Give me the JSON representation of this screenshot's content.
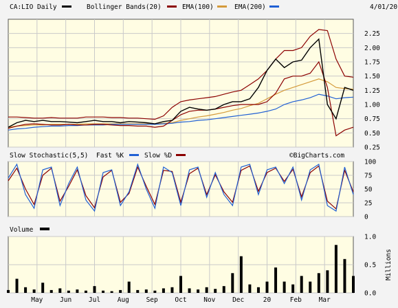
{
  "chart_data": {
    "type": "line",
    "symbol_label": "CA:LIO Daily",
    "date": "4/01/20",
    "price_panel": {
      "ylim": [
        0.25,
        2.5
      ],
      "y_ticks": [
        "2.25",
        "2.00",
        "1.75",
        "1.50",
        "1.25",
        "1.00",
        "0.75",
        "0.50",
        "0.25"
      ],
      "y_tick_values": [
        2.25,
        2.0,
        1.75,
        1.5,
        1.25,
        1.0,
        0.75,
        0.5,
        0.25
      ],
      "legend": [
        {
          "label": "CA:LIO Daily",
          "color": "#000000"
        },
        {
          "label": "Bollinger Bands(20)",
          "color": "#8b0000"
        },
        {
          "label": "EMA(100)",
          "color": "#d49a3a"
        },
        {
          "label": "EMA(200)",
          "color": "#1f5fd4"
        }
      ],
      "x": [
        0,
        0.3,
        0.6,
        0.9,
        1.2,
        1.5,
        1.8,
        2.1,
        2.4,
        2.7,
        3.0,
        3.3,
        3.6,
        3.9,
        4.2,
        4.5,
        4.8,
        5.1,
        5.4,
        5.7,
        6.0,
        6.3,
        6.6,
        6.9,
        7.2,
        7.5,
        7.8,
        8.1,
        8.4,
        8.7,
        9.0,
        9.3,
        9.6,
        9.9,
        10.2,
        10.5,
        10.8,
        11.1,
        11.4,
        11.7,
        12.0
      ],
      "series": [
        {
          "name": "CA:LIO Daily",
          "color": "#000000",
          "values": [
            0.6,
            0.68,
            0.72,
            0.7,
            0.72,
            0.7,
            0.7,
            0.69,
            0.68,
            0.7,
            0.72,
            0.7,
            0.7,
            0.68,
            0.7,
            0.69,
            0.68,
            0.66,
            0.7,
            0.72,
            0.88,
            0.95,
            0.92,
            0.9,
            0.92,
            1.0,
            1.05,
            1.05,
            1.1,
            1.3,
            1.6,
            1.8,
            1.65,
            1.75,
            1.78,
            2.0,
            2.15,
            1.0,
            0.75,
            1.3,
            1.25
          ]
        },
        {
          "name": "Bollinger Bands(20)",
          "color": "#8b0000",
          "values": [
            0.78,
            0.78,
            0.77,
            0.76,
            0.76,
            0.77,
            0.76,
            0.76,
            0.76,
            0.78,
            0.78,
            0.78,
            0.77,
            0.77,
            0.76,
            0.76,
            0.75,
            0.74,
            0.8,
            0.95,
            1.05,
            1.08,
            1.1,
            1.12,
            1.14,
            1.18,
            1.22,
            1.25,
            1.35,
            1.45,
            1.6,
            1.8,
            1.95,
            1.95,
            2.0,
            2.2,
            2.32,
            2.3,
            1.8,
            1.5,
            1.48
          ]
        },
        {
          "name": "Bollinger Bands(20) lower",
          "color": "#8b0000",
          "values": [
            0.58,
            0.62,
            0.65,
            0.66,
            0.65,
            0.64,
            0.64,
            0.65,
            0.64,
            0.64,
            0.65,
            0.65,
            0.64,
            0.63,
            0.63,
            0.62,
            0.62,
            0.6,
            0.62,
            0.72,
            0.82,
            0.88,
            0.9,
            0.9,
            0.92,
            0.95,
            0.98,
            1.0,
            1.0,
            1.0,
            1.05,
            1.2,
            1.45,
            1.5,
            1.5,
            1.55,
            1.75,
            1.3,
            0.45,
            0.55,
            0.6
          ]
        },
        {
          "name": "EMA(100)",
          "color": "#d49a3a",
          "values": [
            0.6,
            0.62,
            0.63,
            0.64,
            0.64,
            0.65,
            0.65,
            0.65,
            0.65,
            0.66,
            0.66,
            0.66,
            0.66,
            0.66,
            0.66,
            0.66,
            0.66,
            0.66,
            0.67,
            0.68,
            0.72,
            0.75,
            0.78,
            0.8,
            0.83,
            0.86,
            0.9,
            0.93,
            0.98,
            1.02,
            1.1,
            1.18,
            1.25,
            1.3,
            1.35,
            1.4,
            1.45,
            1.4,
            1.3,
            1.28,
            1.27
          ]
        },
        {
          "name": "EMA(200)",
          "color": "#1f5fd4",
          "values": [
            0.55,
            0.57,
            0.58,
            0.6,
            0.61,
            0.62,
            0.62,
            0.63,
            0.63,
            0.64,
            0.64,
            0.64,
            0.65,
            0.65,
            0.65,
            0.65,
            0.65,
            0.65,
            0.66,
            0.67,
            0.69,
            0.7,
            0.72,
            0.73,
            0.75,
            0.77,
            0.79,
            0.81,
            0.83,
            0.85,
            0.88,
            0.92,
            1.0,
            1.05,
            1.08,
            1.12,
            1.18,
            1.15,
            1.1,
            1.12,
            1.13
          ]
        }
      ]
    },
    "stochastic_panel": {
      "title": "Slow Stochastic(5,5)",
      "legend": [
        {
          "label": "Fast %K",
          "color": "#1f5fd4"
        },
        {
          "label": "Slow %D",
          "color": "#8b0000"
        }
      ],
      "ylim": [
        0,
        100
      ],
      "y_ticks": [
        "100",
        "75",
        "50",
        "25",
        "0"
      ],
      "y_tick_values": [
        100,
        75,
        50,
        25,
        0
      ],
      "x": [
        0,
        0.3,
        0.6,
        0.9,
        1.2,
        1.5,
        1.8,
        2.1,
        2.4,
        2.7,
        3.0,
        3.3,
        3.6,
        3.9,
        4.2,
        4.5,
        4.8,
        5.1,
        5.4,
        5.7,
        6.0,
        6.3,
        6.6,
        6.9,
        7.2,
        7.5,
        7.8,
        8.1,
        8.4,
        8.7,
        9.0,
        9.3,
        9.6,
        9.9,
        10.2,
        10.5,
        10.8,
        11.1,
        11.4,
        11.7,
        12.0
      ],
      "series": [
        {
          "name": "Fast %K",
          "color": "#1f5fd4",
          "values": [
            70,
            95,
            40,
            15,
            85,
            90,
            20,
            60,
            90,
            30,
            10,
            80,
            85,
            20,
            45,
            95,
            50,
            15,
            90,
            80,
            20,
            85,
            90,
            35,
            80,
            40,
            20,
            90,
            95,
            40,
            85,
            90,
            60,
            90,
            30,
            85,
            95,
            20,
            10,
            90,
            40
          ]
        },
        {
          "name": "Slow %D",
          "color": "#8b0000",
          "values": [
            65,
            88,
            50,
            22,
            75,
            88,
            28,
            55,
            85,
            38,
            16,
            72,
            84,
            26,
            42,
            90,
            55,
            22,
            84,
            82,
            26,
            78,
            88,
            40,
            76,
            45,
            26,
            84,
            92,
            46,
            80,
            88,
            64,
            86,
            36,
            80,
            92,
            28,
            14,
            84,
            45
          ]
        }
      ]
    },
    "volume_panel": {
      "title": "Volume",
      "ylabel": "Millions",
      "ylim": [
        0,
        1.0
      ],
      "y_ticks": [
        "1.0",
        "0.5",
        "0.0"
      ],
      "y_tick_values": [
        1.0,
        0.5,
        0.0
      ],
      "x": [
        0,
        0.3,
        0.6,
        0.9,
        1.2,
        1.5,
        1.8,
        2.1,
        2.4,
        2.7,
        3.0,
        3.3,
        3.6,
        3.9,
        4.2,
        4.5,
        4.8,
        5.1,
        5.4,
        5.7,
        6.0,
        6.3,
        6.6,
        6.9,
        7.2,
        7.5,
        7.8,
        8.1,
        8.4,
        8.7,
        9.0,
        9.3,
        9.6,
        9.9,
        10.2,
        10.5,
        10.8,
        11.1,
        11.4,
        11.7,
        12.0
      ],
      "values": [
        0.05,
        0.25,
        0.1,
        0.06,
        0.18,
        0.05,
        0.08,
        0.04,
        0.06,
        0.04,
        0.12,
        0.04,
        0.03,
        0.05,
        0.2,
        0.05,
        0.06,
        0.04,
        0.08,
        0.1,
        0.3,
        0.08,
        0.06,
        0.1,
        0.07,
        0.12,
        0.35,
        0.65,
        0.15,
        0.1,
        0.2,
        0.45,
        0.2,
        0.15,
        0.3,
        0.2,
        0.35,
        0.4,
        0.85,
        0.6,
        0.3
      ]
    },
    "x_axis": {
      "xlim": [
        0,
        12
      ],
      "labels": [
        "May",
        "Jun",
        "Jul",
        "Aug",
        "Sep",
        "Oct",
        "Nov",
        "Dec",
        "20",
        "Feb",
        "Mar"
      ],
      "positions": [
        1,
        2,
        3,
        4,
        5,
        6,
        7,
        8,
        9,
        10,
        11
      ]
    },
    "watermark": "©BigCharts.com"
  }
}
